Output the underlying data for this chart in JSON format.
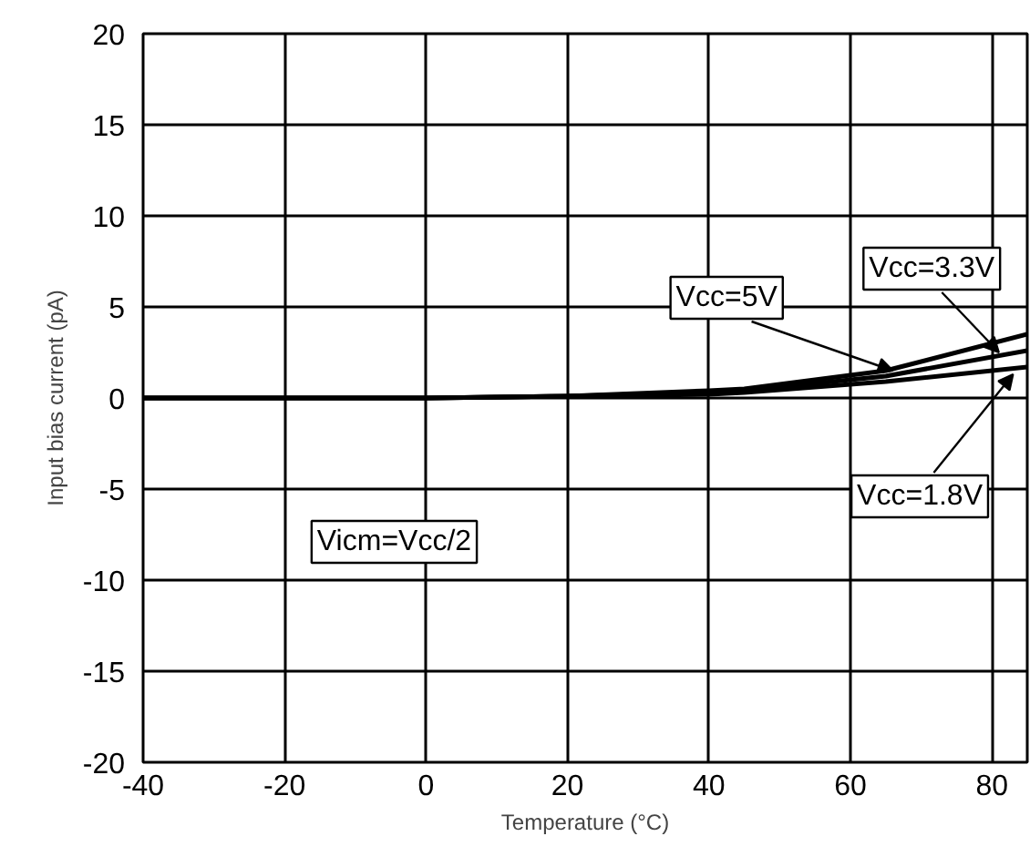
{
  "chart_data": {
    "type": "line",
    "xlabel": "Temperature (°C)",
    "ylabel": "Input bias current (pA)",
    "x": [
      -40,
      -20,
      0,
      20,
      40,
      45,
      65,
      85
    ],
    "series": [
      {
        "color": "#000000",
        "values": [
          0,
          0,
          0,
          0.1,
          0.4,
          0.5,
          1.5,
          3.5
        ]
      },
      {
        "color": "#000000",
        "values": [
          0,
          0,
          0,
          0.1,
          0.3,
          0.4,
          1.2,
          2.6
        ]
      },
      {
        "color": "#000000",
        "values": [
          0,
          0,
          0,
          0.1,
          0.2,
          0.3,
          0.9,
          1.7
        ]
      }
    ],
    "annotations": [
      {
        "text": "Vcc=5V",
        "x": 66,
        "y": 1.5
      },
      {
        "text": "Vcc=3.3V",
        "x": 81,
        "y": 2.5
      },
      {
        "text": "Vcc=1.8V",
        "x": 83,
        "y": 1.3
      },
      "Vicm=Vcc/2"
    ],
    "xlim": [
      -40,
      85
    ],
    "ylim": [
      -20,
      20
    ],
    "xticks": [
      -40,
      -20,
      0,
      20,
      40,
      60,
      80
    ],
    "yticks": [
      -20,
      -15,
      -10,
      -5,
      0,
      5,
      10,
      15,
      20
    ],
    "grid": true,
    "marker": "none",
    "line_style": "solid"
  }
}
